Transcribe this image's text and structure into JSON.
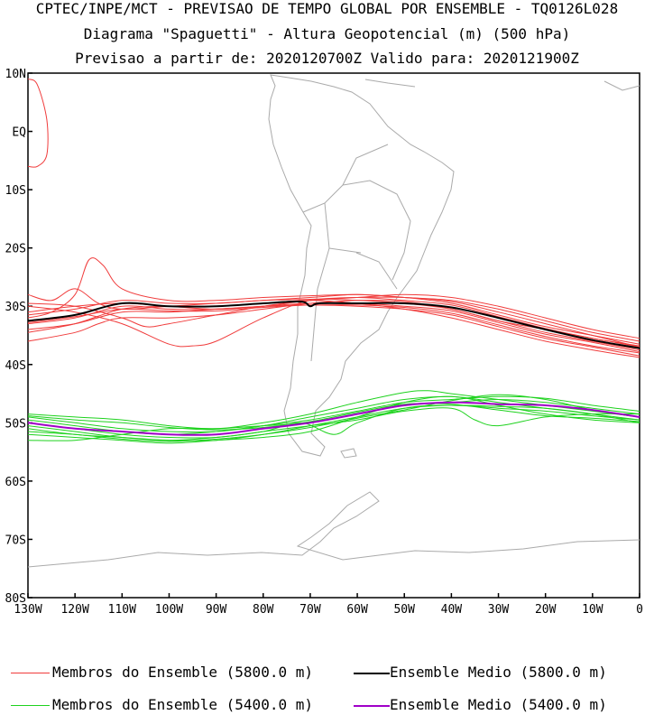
{
  "header": {
    "line1": "CPTEC/INPE/MCT - PREVISAO DE TEMPO GLOBAL POR ENSEMBLE - TQ0126L028",
    "line2": "Diagrama \"Spaguetti\" - Altura Geopotencial (m) (500 hPa)",
    "line3": "Previsao a partir de: 2020120700Z  Valido para: 2020121900Z"
  },
  "legend": {
    "members_5800": "Membros do Ensemble (5800.0 m)",
    "mean_5800": "Ensemble Medio (5800.0 m)",
    "members_5400": "Membros do Ensemble (5400.0 m)",
    "mean_5400": "Ensemble Medio (5400.0 m)"
  },
  "colors": {
    "members_5800": "#f03c3c",
    "members_5400": "#1ed21e",
    "mean_5800": "#000000",
    "mean_5400": "#a000c8",
    "coast": "#aaaaaa"
  },
  "chart_data": {
    "type": "line",
    "x_axis": {
      "range": [
        -130,
        0
      ],
      "ticks": [
        -130,
        -120,
        -110,
        -100,
        -90,
        -80,
        -70,
        -60,
        -50,
        -40,
        -30,
        -20,
        -10,
        0
      ],
      "tick_labels": [
        "130W",
        "120W",
        "110W",
        "100W",
        "90W",
        "80W",
        "70W",
        "60W",
        "50W",
        "40W",
        "30W",
        "20W",
        "10W",
        "0"
      ]
    },
    "y_axis": {
      "range": [
        -80,
        10
      ],
      "ticks": [
        10,
        0,
        -10,
        -20,
        -30,
        -40,
        -50,
        -60,
        -70,
        -80
      ],
      "tick_labels": [
        "10N",
        "EQ",
        "10S",
        "20S",
        "30S",
        "40S",
        "50S",
        "60S",
        "70S",
        "80S"
      ]
    },
    "series": [
      {
        "group": "mean_5800",
        "lon": [
          -130,
          -120,
          -110,
          -100,
          -90,
          -80,
          -72,
          -70,
          -68,
          -60,
          -50,
          -40,
          -30,
          -20,
          -10,
          0
        ],
        "lat": [
          -32.5,
          -31.5,
          -29.5,
          -30.0,
          -30.0,
          -29.5,
          -29.2,
          -30.0,
          -29.5,
          -29.5,
          -29.5,
          -30.2,
          -32.0,
          -34.0,
          -35.8,
          -37.2
        ]
      },
      {
        "group": "mean_5400",
        "lon": [
          -130,
          -120,
          -110,
          -100,
          -90,
          -80,
          -70,
          -60,
          -50,
          -40,
          -30,
          -20,
          -10,
          0
        ],
        "lat": [
          -50.0,
          -51.0,
          -51.5,
          -52.0,
          -52.0,
          -51.0,
          -50.0,
          -48.5,
          -47.0,
          -46.5,
          -46.8,
          -47.0,
          -47.8,
          -49.0
        ]
      },
      {
        "group": "members_5800",
        "lon": [
          -130,
          -120,
          -110,
          -100,
          -90,
          -80,
          -70,
          -60,
          -50,
          -40,
          -30,
          -20,
          -10,
          0
        ],
        "lat": [
          -31.5,
          -30.5,
          -29.0,
          -29.5,
          -29.5,
          -29.0,
          -28.8,
          -28.5,
          -29.0,
          -29.8,
          -31.8,
          -33.8,
          -35.5,
          -36.8
        ]
      },
      {
        "group": "members_5800",
        "lon": [
          -130,
          -120,
          -110,
          -100,
          -90,
          -80,
          -70,
          -60,
          -50,
          -40,
          -30,
          -20,
          -10,
          0
        ],
        "lat": [
          -33.0,
          -32.0,
          -30.0,
          -30.5,
          -30.5,
          -30.0,
          -29.5,
          -29.5,
          -30.0,
          -30.8,
          -32.8,
          -34.8,
          -36.2,
          -37.8
        ]
      },
      {
        "group": "members_5800",
        "lon": [
          -130,
          -120,
          -110,
          -100,
          -90,
          -80,
          -70,
          -60,
          -50,
          -40,
          -30,
          -20,
          -10,
          0
        ],
        "lat": [
          -34.0,
          -33.0,
          -31.0,
          -31.0,
          -30.5,
          -30.0,
          -29.8,
          -30.0,
          -30.5,
          -31.5,
          -33.5,
          -35.5,
          -37.0,
          -38.5
        ]
      },
      {
        "group": "members_5800",
        "lon": [
          -130,
          -120,
          -115,
          -110,
          -100,
          -90,
          -80,
          -70,
          -60,
          -50,
          -40,
          -30,
          -20,
          -10,
          0
        ],
        "lat": [
          -36.0,
          -34.5,
          -33.0,
          -32.0,
          -32.0,
          -31.5,
          -30.5,
          -29.5,
          -29.0,
          -29.2,
          -30.5,
          -32.5,
          -34.5,
          -36.0,
          -37.5
        ]
      },
      {
        "group": "members_5800",
        "lon": [
          -130,
          -125,
          -120,
          -117,
          -114,
          -110,
          -100,
          -90,
          -80,
          -70,
          -60,
          -50,
          -40,
          -30,
          -20,
          -10,
          0
        ],
        "lat": [
          -32.0,
          -31.0,
          -28.0,
          -22.0,
          -23.0,
          -27.0,
          -29.0,
          -29.0,
          -28.5,
          -28.2,
          -28.0,
          -28.5,
          -29.5,
          -31.5,
          -33.5,
          -35.0,
          -36.5
        ]
      },
      {
        "group": "members_5800",
        "lon": [
          -130,
          -125,
          -120,
          -115,
          -110,
          -100,
          -90,
          -80,
          -70,
          -60,
          -50,
          -40,
          -30,
          -20,
          -10,
          0
        ],
        "lat": [
          -28.0,
          -29.0,
          -27.0,
          -29.5,
          -30.5,
          -30.0,
          -29.5,
          -29.0,
          -28.5,
          -28.0,
          -28.5,
          -29.0,
          -30.5,
          -32.5,
          -34.5,
          -36.0
        ]
      },
      {
        "group": "members_5800",
        "lon": [
          -130,
          -120,
          -110,
          -100,
          -95,
          -90,
          -80,
          -70,
          -60,
          -50,
          -40,
          -30,
          -20,
          -10,
          0
        ],
        "lat": [
          -30.0,
          -31.0,
          -33.0,
          -36.5,
          -36.8,
          -36.0,
          -32.0,
          -29.0,
          -29.0,
          -29.5,
          -30.5,
          -32.5,
          -34.0,
          -35.5,
          -37.0
        ]
      },
      {
        "group": "members_5800",
        "lon": [
          -130,
          -120,
          -110,
          -105,
          -100,
          -90,
          -80,
          -70,
          -60,
          -50,
          -40,
          -30,
          -20,
          -10,
          0
        ],
        "lat": [
          -29.5,
          -30.0,
          -32.0,
          -33.5,
          -33.0,
          -31.5,
          -30.0,
          -29.0,
          -28.5,
          -28.0,
          -28.5,
          -30.0,
          -32.0,
          -34.0,
          -35.5
        ]
      },
      {
        "group": "members_5800",
        "lon": [
          -130,
          -120,
          -110,
          -100,
          -90,
          -80,
          -70,
          -60,
          -50,
          -40,
          -30,
          -20,
          -10,
          0
        ],
        "lat": [
          -34.5,
          -33.0,
          -30.5,
          -30.0,
          -30.0,
          -29.5,
          -29.0,
          -29.5,
          -30.5,
          -32.0,
          -34.0,
          -36.0,
          -37.5,
          -38.8
        ]
      },
      {
        "group": "members_5800",
        "lon": [
          -130,
          -120,
          -110,
          -100,
          -90,
          -80,
          -70,
          -60,
          -50,
          -40,
          -30,
          -20,
          -10,
          0
        ],
        "lat": [
          -31.0,
          -30.0,
          -29.5,
          -30.0,
          -30.5,
          -30.0,
          -29.0,
          -28.5,
          -28.5,
          -29.2,
          -31.0,
          -33.0,
          -35.0,
          -37.0
        ]
      },
      {
        "group": "members_5800",
        "lon": [
          -130,
          -120,
          -110,
          -100,
          -90,
          -80,
          -70,
          -60,
          -50,
          -40,
          -30,
          -20,
          -10,
          0
        ],
        "lat": [
          -32.8,
          -31.8,
          -30.5,
          -30.8,
          -30.8,
          -30.2,
          -29.8,
          -29.8,
          -30.2,
          -31.2,
          -33.2,
          -35.2,
          -36.8,
          -38.0
        ]
      },
      {
        "group": "members_5800",
        "lon": [
          -130,
          -128,
          -126,
          -126,
          -128,
          -130
        ],
        "lat": [
          -6.0,
          -6.0,
          -4.0,
          2.0,
          8.0,
          9.0
        ]
      },
      {
        "group": "members_5400",
        "lon": [
          -130,
          -120,
          -110,
          -100,
          -90,
          -80,
          -70,
          -60,
          -50,
          -40,
          -30,
          -20,
          -10,
          0
        ],
        "lat": [
          -49.0,
          -50.0,
          -51.0,
          -51.5,
          -51.5,
          -50.5,
          -49.0,
          -47.5,
          -46.0,
          -45.5,
          -46.5,
          -47.5,
          -48.5,
          -49.5
        ]
      },
      {
        "group": "members_5400",
        "lon": [
          -130,
          -120,
          -110,
          -100,
          -90,
          -80,
          -70,
          -60,
          -50,
          -40,
          -30,
          -20,
          -10,
          0
        ],
        "lat": [
          -51.0,
          -52.0,
          -52.5,
          -53.0,
          -53.0,
          -52.0,
          -50.5,
          -49.0,
          -47.5,
          -47.0,
          -47.2,
          -47.5,
          -48.5,
          -50.0
        ]
      },
      {
        "group": "members_5400",
        "lon": [
          -130,
          -120,
          -110,
          -100,
          -90,
          -80,
          -70,
          -60,
          -50,
          -40,
          -30,
          -20,
          -10,
          0
        ],
        "lat": [
          -52.0,
          -52.5,
          -53.0,
          -53.5,
          -53.0,
          -52.5,
          -51.5,
          -49.0,
          -46.5,
          -45.5,
          -47.0,
          -48.5,
          -49.5,
          -50.0
        ]
      },
      {
        "group": "members_5400",
        "lon": [
          -130,
          -120,
          -110,
          -100,
          -90,
          -80,
          -70,
          -60,
          -50,
          -45,
          -40,
          -30,
          -20,
          -10,
          0
        ],
        "lat": [
          -48.5,
          -49.0,
          -49.5,
          -50.5,
          -51.0,
          -50.0,
          -48.5,
          -46.5,
          -44.8,
          -44.5,
          -45.0,
          -46.0,
          -47.0,
          -48.0,
          -49.0
        ]
      },
      {
        "group": "members_5400",
        "lon": [
          -130,
          -120,
          -110,
          -100,
          -90,
          -80,
          -70,
          -60,
          -50,
          -40,
          -35,
          -30,
          -20,
          -10,
          0
        ],
        "lat": [
          -50.0,
          -51.0,
          -52.0,
          -52.5,
          -52.5,
          -51.5,
          -50.5,
          -49.5,
          -48.0,
          -47.5,
          -49.5,
          -50.5,
          -49.0,
          -48.5,
          -48.5
        ]
      },
      {
        "group": "members_5400",
        "lon": [
          -130,
          -120,
          -110,
          -100,
          -90,
          -80,
          -70,
          -60,
          -50,
          -40,
          -30,
          -20,
          -10,
          0
        ],
        "lat": [
          -53.0,
          -53.0,
          -52.0,
          -51.0,
          -51.0,
          -50.5,
          -50.0,
          -48.5,
          -47.0,
          -46.5,
          -46.0,
          -46.5,
          -47.5,
          -48.5
        ]
      },
      {
        "group": "members_5400",
        "lon": [
          -130,
          -120,
          -110,
          -100,
          -90,
          -80,
          -70,
          -60,
          -50,
          -40,
          -30,
          -20,
          -10,
          0
        ],
        "lat": [
          -49.5,
          -50.5,
          -51.5,
          -52.0,
          -51.5,
          -50.5,
          -49.5,
          -48.0,
          -46.5,
          -46.0,
          -45.5,
          -45.8,
          -47.0,
          -48.0
        ]
      },
      {
        "group": "members_5400",
        "lon": [
          -130,
          -120,
          -110,
          -100,
          -90,
          -80,
          -72,
          -65,
          -60,
          -50,
          -40,
          -30,
          -20,
          -10,
          0
        ],
        "lat": [
          -50.5,
          -51.5,
          -52.5,
          -53.0,
          -52.5,
          -51.5,
          -50.0,
          -52.0,
          -50.0,
          -47.5,
          -47.0,
          -47.5,
          -48.0,
          -48.8,
          -49.5
        ]
      },
      {
        "group": "members_5400",
        "lon": [
          -130,
          -120,
          -110,
          -100,
          -90,
          -80,
          -70,
          -60,
          -50,
          -40,
          -30,
          -20,
          -10,
          0
        ],
        "lat": [
          -48.8,
          -49.5,
          -50.0,
          -50.8,
          -51.2,
          -50.8,
          -49.8,
          -48.2,
          -46.8,
          -46.8,
          -47.8,
          -48.8,
          -49.2,
          -49.8
        ]
      },
      {
        "group": "members_5400",
        "lon": [
          -130,
          -120,
          -110,
          -100,
          -90,
          -80,
          -70,
          -60,
          -50,
          -40,
          -30,
          -20,
          -10,
          0
        ],
        "lat": [
          -51.5,
          -52.0,
          -52.8,
          -53.2,
          -52.8,
          -52.0,
          -50.8,
          -49.2,
          -47.8,
          -46.2,
          -45.2,
          -46.0,
          -47.8,
          -49.0
        ]
      }
    ]
  }
}
